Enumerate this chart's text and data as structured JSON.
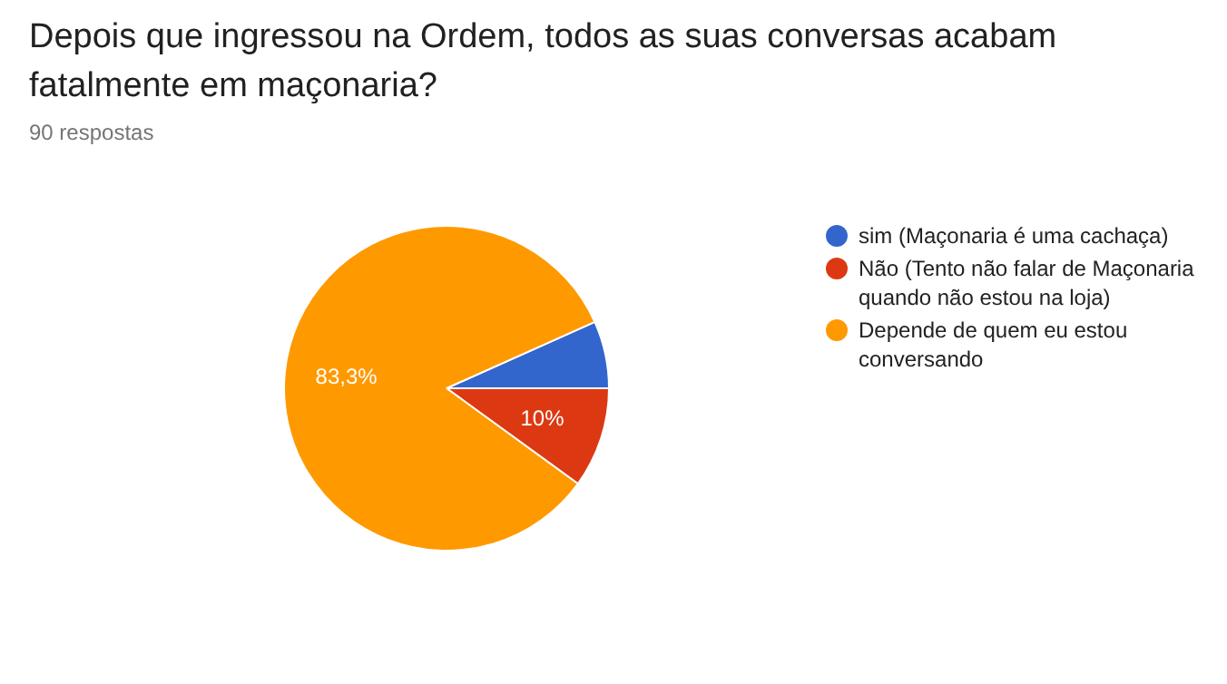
{
  "chart_data": {
    "type": "pie",
    "title": "Depois que ingressou na Ordem, todos as suas conversas acabam fatalmente em maçonaria?",
    "subtitle": "90 respostas",
    "categories": [
      "sim (Maçonaria é uma cachaça)",
      "Não (Tento não falar de Maçonaria quando não estou na loja)",
      "Depende de quem eu estou conversando"
    ],
    "values": [
      6.7,
      10,
      83.3
    ],
    "colors": [
      "#3366cc",
      "#dc3912",
      "#ff9900"
    ],
    "value_labels": [
      null,
      "10%",
      "83,3%"
    ],
    "legend": "right"
  }
}
